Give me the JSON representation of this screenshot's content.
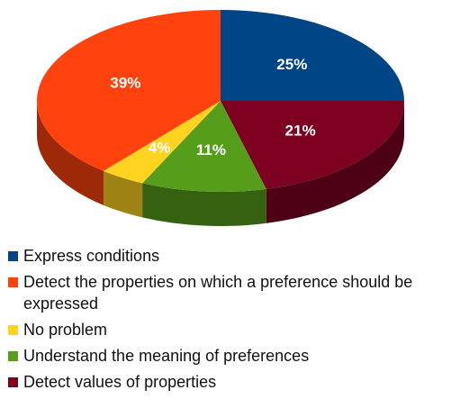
{
  "chart_data": {
    "type": "pie",
    "style": "3d",
    "title": "",
    "legend_position": "bottom",
    "slices": [
      {
        "label": "Express conditions",
        "value": 25,
        "display": "25%",
        "color": "#004586"
      },
      {
        "label": "Detect values of properties",
        "value": 21,
        "display": "21%",
        "color": "#7e0021"
      },
      {
        "label": "Understand the meaning of preferences",
        "value": 11,
        "display": "11%",
        "color": "#579d1c"
      },
      {
        "label": "No problem",
        "value": 4,
        "display": "4%",
        "color": "#ffd320"
      },
      {
        "label": "Detect the properties on which a preference should be expressed",
        "value": 39,
        "display": "39%",
        "color": "#ff420e"
      }
    ],
    "legend_order": [
      "Express conditions",
      "Detect the properties on which a preference should be expressed",
      "No problem",
      "Understand the meaning of preferences",
      "Detect values of properties"
    ]
  }
}
